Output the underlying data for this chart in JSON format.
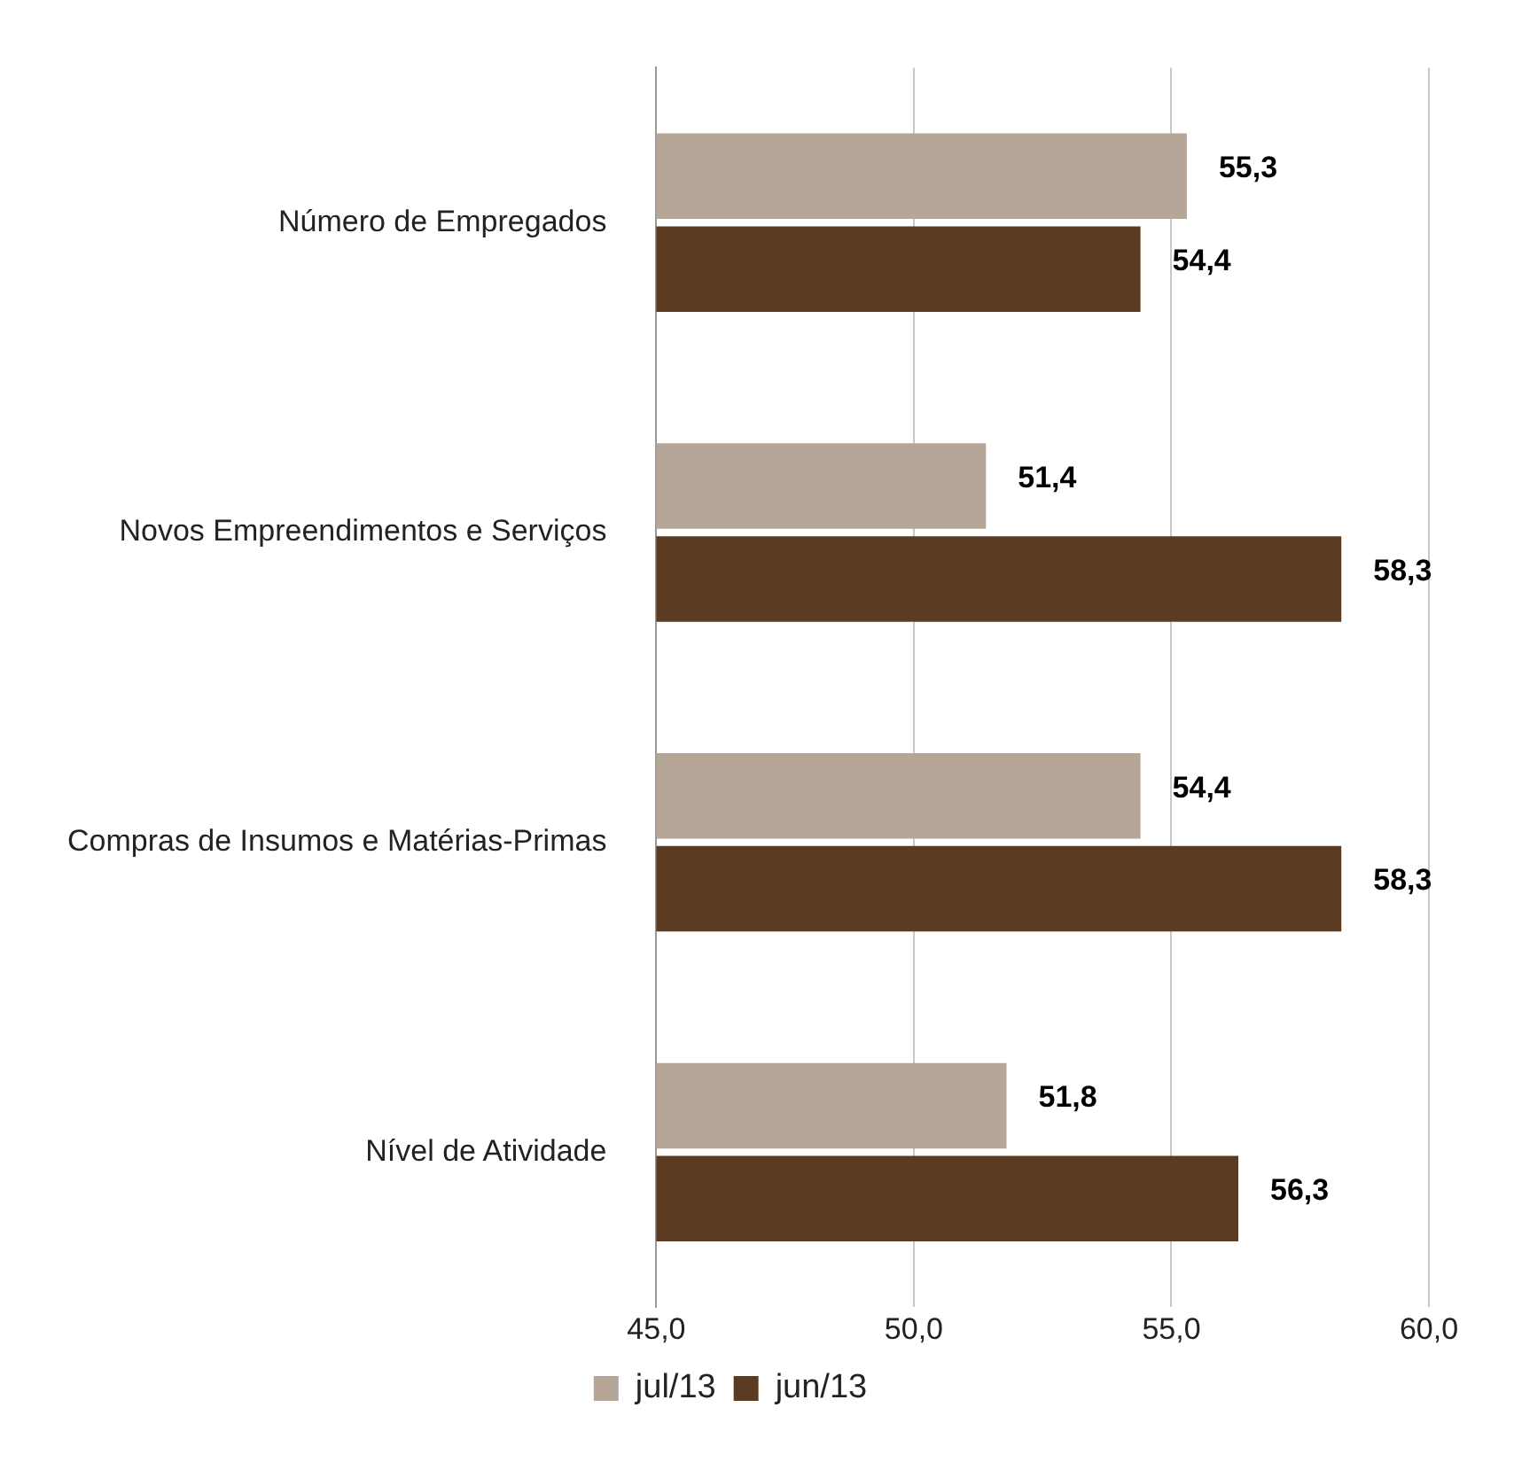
{
  "chart_data": {
    "type": "bar",
    "orientation": "horizontal",
    "categories": [
      "Número de Empregados",
      "Novos Empreendimentos e Serviços",
      "Compras de Insumos e Matérias-Primas",
      "Nível de Atividade"
    ],
    "series": [
      {
        "name": "jul/13",
        "color": "#b5a698",
        "values": [
          55.3,
          51.4,
          54.4,
          51.8
        ],
        "value_labels": [
          "55,3",
          "51,4",
          "54,4",
          "51,8"
        ]
      },
      {
        "name": "jun/13",
        "color": "#5b3b22",
        "values": [
          54.4,
          58.3,
          58.3,
          56.3
        ],
        "value_labels": [
          "54,4",
          "58,3",
          "58,3",
          "56,3"
        ]
      }
    ],
    "xlim": [
      45,
      60
    ],
    "xticks": [
      {
        "value": 45,
        "label": "45,0"
      },
      {
        "value": 50,
        "label": "50,0"
      },
      {
        "value": 55,
        "label": "55,0"
      },
      {
        "value": 60,
        "label": "60,0"
      }
    ],
    "grid": "x",
    "legend": "bottom"
  }
}
